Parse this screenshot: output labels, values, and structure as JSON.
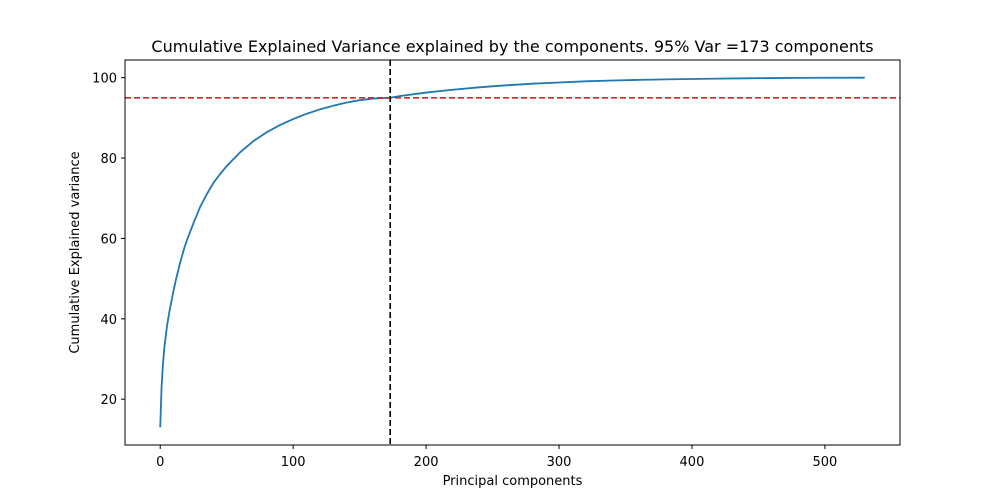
{
  "chart_data": {
    "type": "line",
    "title": "Cumulative Explained Variance explained by the components. 95% Var =173 components",
    "xlabel": "Principal components",
    "ylabel": "Cumulative Explained variance",
    "xlim": [
      -26.5,
      556.5
    ],
    "ylim": [
      8.6,
      104.4
    ],
    "xticks": [
      0,
      100,
      200,
      300,
      400,
      500
    ],
    "yticks": [
      20,
      40,
      60,
      80,
      100
    ],
    "grid": false,
    "series": [
      {
        "color": "#1f77b4",
        "x": [
          0,
          1,
          2,
          3,
          5,
          7,
          10,
          12,
          15,
          18,
          20,
          25,
          30,
          35,
          40,
          45,
          50,
          60,
          70,
          80,
          90,
          100,
          110,
          120,
          130,
          140,
          150,
          160,
          173,
          180,
          200,
          220,
          240,
          260,
          280,
          300,
          320,
          340,
          360,
          380,
          400,
          420,
          440,
          460,
          480,
          500,
          530
        ],
        "y": [
          13.0,
          23.0,
          28.5,
          32.5,
          38.0,
          42.0,
          47.0,
          50.0,
          54.0,
          57.5,
          59.5,
          63.8,
          67.8,
          71.0,
          73.8,
          76.0,
          78.0,
          81.4,
          84.2,
          86.4,
          88.2,
          89.7,
          91.0,
          92.1,
          93.0,
          93.8,
          94.4,
          94.8,
          95.0,
          95.4,
          96.3,
          97.0,
          97.6,
          98.1,
          98.5,
          98.8,
          99.1,
          99.3,
          99.45,
          99.58,
          99.68,
          99.77,
          99.84,
          99.9,
          99.95,
          99.98,
          100.0
        ]
      }
    ],
    "reference_lines": [
      {
        "orientation": "horizontal",
        "value": 95,
        "color": "#d62728",
        "style": "dashed"
      },
      {
        "orientation": "vertical",
        "value": 173,
        "color": "#000000",
        "style": "dashed"
      }
    ]
  }
}
